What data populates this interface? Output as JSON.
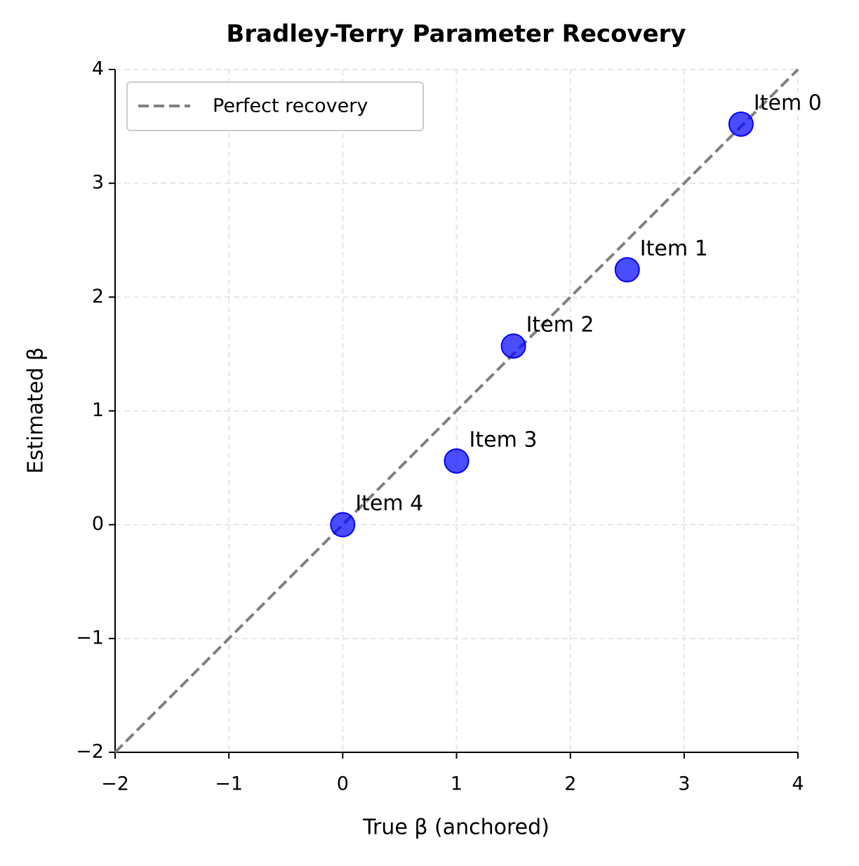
{
  "chart_data": {
    "type": "scatter",
    "title": "Bradley-Terry Parameter Recovery",
    "x_label": "True β (anchored)",
    "y_label": "Estimated β",
    "series": [
      {
        "name": null,
        "color": "#0000ff",
        "x": [
          3.5,
          2.5,
          1.5,
          1.0,
          0.0
        ],
        "values": [
          3.52,
          2.24,
          1.57,
          0.56,
          0.0
        ],
        "point_labels": [
          "Item 0",
          "Item 1",
          "Item 2",
          "Item 3",
          "Item 4"
        ]
      }
    ],
    "reference_line": {
      "name": "Perfect recovery",
      "color": "#808080",
      "x": [
        -2,
        4
      ],
      "values": [
        -2,
        4
      ]
    },
    "xlim": [
      -2,
      4
    ],
    "ylim": [
      -2,
      4
    ],
    "xticks": [
      {
        "value": -2,
        "label": "−2"
      },
      {
        "value": -1,
        "label": "−1"
      },
      0,
      1,
      2,
      3,
      4
    ],
    "yticks": [
      {
        "value": -2,
        "label": "−2"
      },
      {
        "value": -1,
        "label": "−1"
      },
      0,
      1,
      2,
      3,
      4
    ],
    "grid": true,
    "legend_position": "upper left"
  }
}
